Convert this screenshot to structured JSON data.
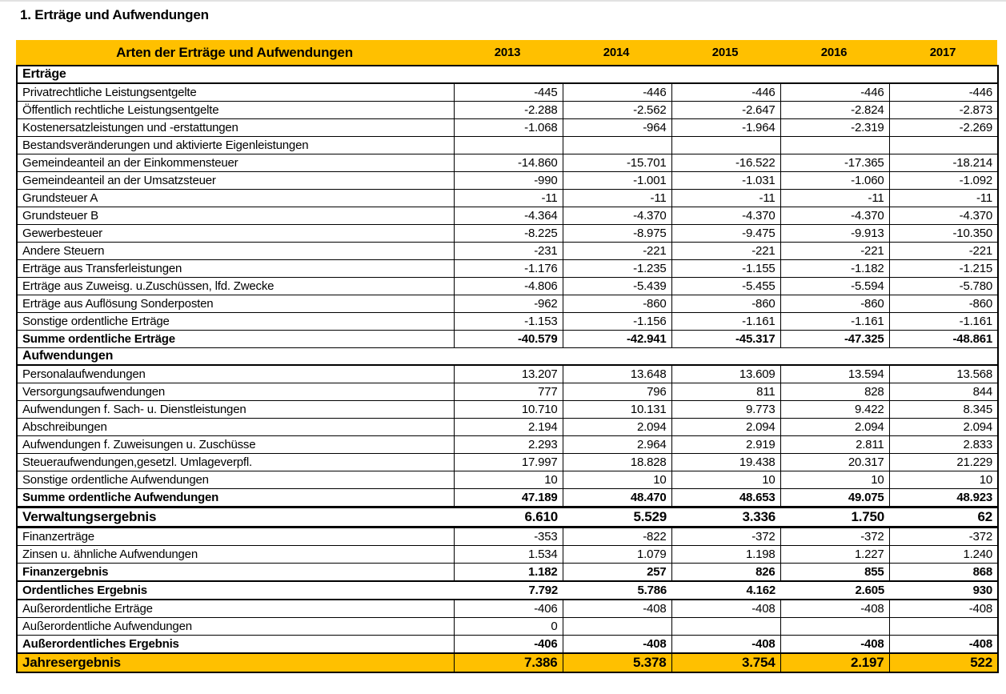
{
  "page_title": "1. Erträge und Aufwendungen",
  "colors": {
    "header_bg": "#FFC000",
    "grand_row_bg": "#FFC000",
    "border": "#000000",
    "text": "#000000"
  },
  "chart_data": {
    "type": "table",
    "title": "Arten der Erträge und Aufwendungen",
    "columns": [
      "2013",
      "2014",
      "2015",
      "2016",
      "2017"
    ],
    "rows": [
      {
        "label": "Erträge",
        "style": "section",
        "values": [
          "",
          "",
          "",
          "",
          ""
        ]
      },
      {
        "label": "Privatrechtliche Leistungsentgelte",
        "style": "normal",
        "values": [
          "-445",
          "-446",
          "-446",
          "-446",
          "-446"
        ]
      },
      {
        "label": "Öffentlich rechtliche Leistungsentgelte",
        "style": "normal",
        "values": [
          "-2.288",
          "-2.562",
          "-2.647",
          "-2.824",
          "-2.873"
        ]
      },
      {
        "label": "Kostenersatzleistungen und -erstattungen",
        "style": "normal",
        "values": [
          "-1.068",
          "-964",
          "-1.964",
          "-2.319",
          "-2.269"
        ]
      },
      {
        "label": "Bestandsveränderungen und aktivierte Eigenleistungen",
        "style": "normal",
        "values": [
          "",
          "",
          "",
          "",
          ""
        ]
      },
      {
        "label": "Gemeindeanteil an der Einkommensteuer",
        "style": "normal",
        "values": [
          "-14.860",
          "-15.701",
          "-16.522",
          "-17.365",
          "-18.214"
        ]
      },
      {
        "label": "Gemeindeanteil an der Umsatzsteuer",
        "style": "normal",
        "values": [
          "-990",
          "-1.001",
          "-1.031",
          "-1.060",
          "-1.092"
        ]
      },
      {
        "label": "Grundsteuer A",
        "style": "normal",
        "values": [
          "-11",
          "-11",
          "-11",
          "-11",
          "-11"
        ]
      },
      {
        "label": "Grundsteuer B",
        "style": "normal",
        "values": [
          "-4.364",
          "-4.370",
          "-4.370",
          "-4.370",
          "-4.370"
        ]
      },
      {
        "label": "Gewerbesteuer",
        "style": "normal",
        "values": [
          "-8.225",
          "-8.975",
          "-9.475",
          "-9.913",
          "-10.350"
        ]
      },
      {
        "label": "Andere Steuern",
        "style": "normal",
        "values": [
          "-231",
          "-221",
          "-221",
          "-221",
          "-221"
        ]
      },
      {
        "label": "Erträge aus Transferleistungen",
        "style": "normal",
        "values": [
          "-1.176",
          "-1.235",
          "-1.155",
          "-1.182",
          "-1.215"
        ]
      },
      {
        "label": "Erträge aus Zuweisg. u.Zuschüssen, lfd. Zwecke",
        "style": "normal",
        "values": [
          "-4.806",
          "-5.439",
          "-5.455",
          "-5.594",
          "-5.780"
        ]
      },
      {
        "label": "Erträge aus Auflösung Sonderposten",
        "style": "normal",
        "values": [
          "-962",
          "-860",
          "-860",
          "-860",
          "-860"
        ]
      },
      {
        "label": "Sonstige ordentliche Erträge",
        "style": "normal",
        "values": [
          "-1.153",
          "-1.156",
          "-1.161",
          "-1.161",
          "-1.161"
        ]
      },
      {
        "label": "Summe ordentliche Erträge",
        "style": "sum",
        "values": [
          "-40.579",
          "-42.941",
          "-45.317",
          "-47.325",
          "-48.861"
        ]
      },
      {
        "label": "Aufwendungen",
        "style": "section",
        "values": [
          "",
          "",
          "",
          "",
          ""
        ]
      },
      {
        "label": "Personalaufwendungen",
        "style": "normal",
        "values": [
          "13.207",
          "13.648",
          "13.609",
          "13.594",
          "13.568"
        ]
      },
      {
        "label": "Versorgungsaufwendungen",
        "style": "normal",
        "values": [
          "777",
          "796",
          "811",
          "828",
          "844"
        ]
      },
      {
        "label": "Aufwendungen f. Sach- u. Dienstleistungen",
        "style": "normal",
        "values": [
          "10.710",
          "10.131",
          "9.773",
          "9.422",
          "8.345"
        ]
      },
      {
        "label": "Abschreibungen",
        "style": "normal",
        "values": [
          "2.194",
          "2.094",
          "2.094",
          "2.094",
          "2.094"
        ]
      },
      {
        "label": "Aufwendungen f. Zuweisungen u. Zuschüsse",
        "style": "normal",
        "values": [
          "2.293",
          "2.964",
          "2.919",
          "2.811",
          "2.833"
        ]
      },
      {
        "label": "Steueraufwendungen,gesetzl. Umlageverpfl.",
        "style": "normal",
        "values": [
          "17.997",
          "18.828",
          "19.438",
          "20.317",
          "21.229"
        ]
      },
      {
        "label": "Sonstige ordentliche Aufwendungen",
        "style": "normal",
        "values": [
          "10",
          "10",
          "10",
          "10",
          "10"
        ]
      },
      {
        "label": "Summe ordentliche Aufwendungen",
        "style": "sum",
        "values": [
          "47.189",
          "48.470",
          "48.653",
          "49.075",
          "48.923"
        ]
      },
      {
        "label": "Verwaltungsergebnis",
        "style": "result-large",
        "values": [
          "6.610",
          "5.529",
          "3.336",
          "1.750",
          "62"
        ]
      },
      {
        "label": "Finanzerträge",
        "style": "normal",
        "values": [
          "-353",
          "-822",
          "-372",
          "-372",
          "-372"
        ]
      },
      {
        "label": "Zinsen u. ähnliche Aufwendungen",
        "style": "normal",
        "values": [
          "1.534",
          "1.079",
          "1.198",
          "1.227",
          "1.240"
        ]
      },
      {
        "label": "Finanzergebnis",
        "style": "sum",
        "values": [
          "1.182",
          "257",
          "826",
          "855",
          "868"
        ]
      },
      {
        "label": "Ordentliches Ergebnis",
        "style": "result",
        "values": [
          "7.792",
          "5.786",
          "4.162",
          "2.605",
          "930"
        ]
      },
      {
        "label": "Außerordentliche Erträge",
        "style": "normal",
        "values": [
          "-406",
          "-408",
          "-408",
          "-408",
          "-408"
        ]
      },
      {
        "label": "Außerordentliche Aufwendungen",
        "style": "normal",
        "values": [
          "0",
          "",
          "",
          "",
          ""
        ]
      },
      {
        "label": "Außerordentliches Ergebnis",
        "style": "sum",
        "values": [
          "-406",
          "-408",
          "-408",
          "-408",
          "-408"
        ]
      },
      {
        "label": "Jahresergebnis",
        "style": "grand",
        "values": [
          "7.386",
          "5.378",
          "3.754",
          "2.197",
          "522"
        ]
      }
    ]
  }
}
